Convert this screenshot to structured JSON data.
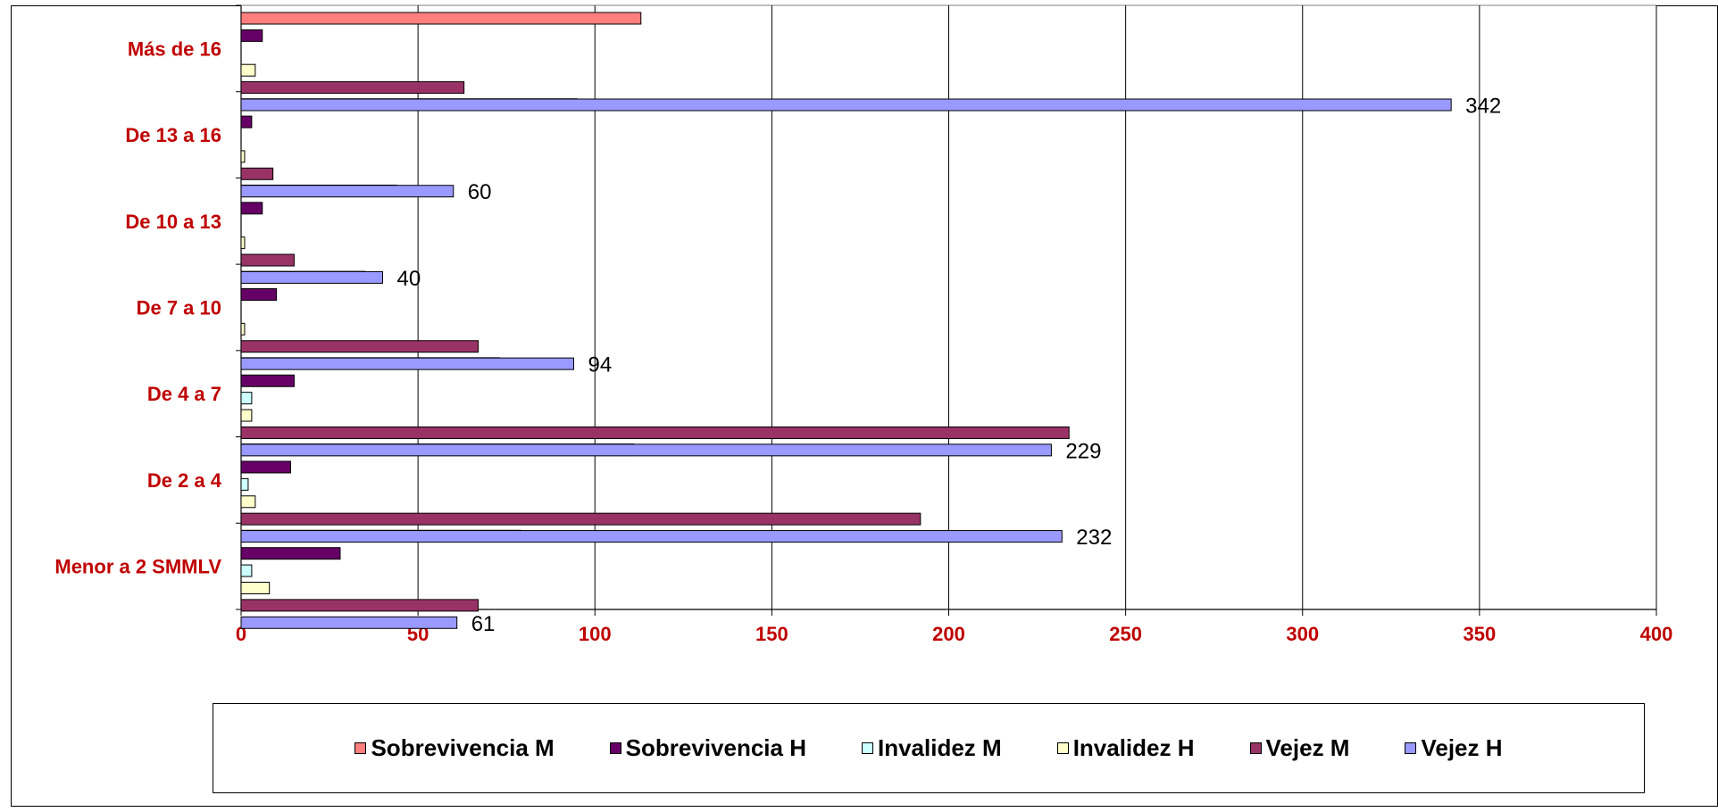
{
  "chart_data": {
    "type": "bar",
    "orientation": "horizontal",
    "categories": [
      "Menor a 2 SMMLV",
      "De 2 a 4",
      "De 4 a 7",
      "De 7 a 10",
      "De 10 a 13",
      "De 13 a 16",
      "Más de 16"
    ],
    "series": [
      {
        "name": "Sobrevivencia M",
        "color": "#FF7F7F",
        "values": [
          79,
          111,
          73,
          35,
          44,
          95,
          113
        ]
      },
      {
        "name": "Sobrevivencia H",
        "color": "#660066",
        "values": [
          28,
          14,
          15,
          10,
          6,
          3,
          6
        ]
      },
      {
        "name": "Invalidez M",
        "color": "#CCFFFF",
        "values": [
          3,
          2,
          3,
          0,
          0,
          0,
          0
        ]
      },
      {
        "name": "Invalidez H",
        "color": "#FFFFCC",
        "values": [
          8,
          4,
          3,
          1,
          1,
          1,
          4
        ]
      },
      {
        "name": "Vejez M",
        "color": "#993366",
        "values": [
          67,
          192,
          234,
          67,
          15,
          9,
          63
        ]
      },
      {
        "name": "Vejez H",
        "color": "#9999FF",
        "values": [
          61,
          232,
          229,
          94,
          40,
          60,
          342
        ]
      }
    ],
    "data_labels": {
      "series": "Vejez H",
      "values": [
        "61",
        "232",
        "229",
        "94",
        "40",
        "60",
        "342"
      ]
    },
    "x_ticks": [
      "0",
      "50",
      "100",
      "150",
      "200",
      "250",
      "300",
      "350",
      "400"
    ],
    "xlim": [
      0,
      400
    ],
    "grid": "vertical",
    "legend_position": "bottom",
    "label_color": "#C00000",
    "title": "",
    "xlabel": "",
    "ylabel": ""
  }
}
